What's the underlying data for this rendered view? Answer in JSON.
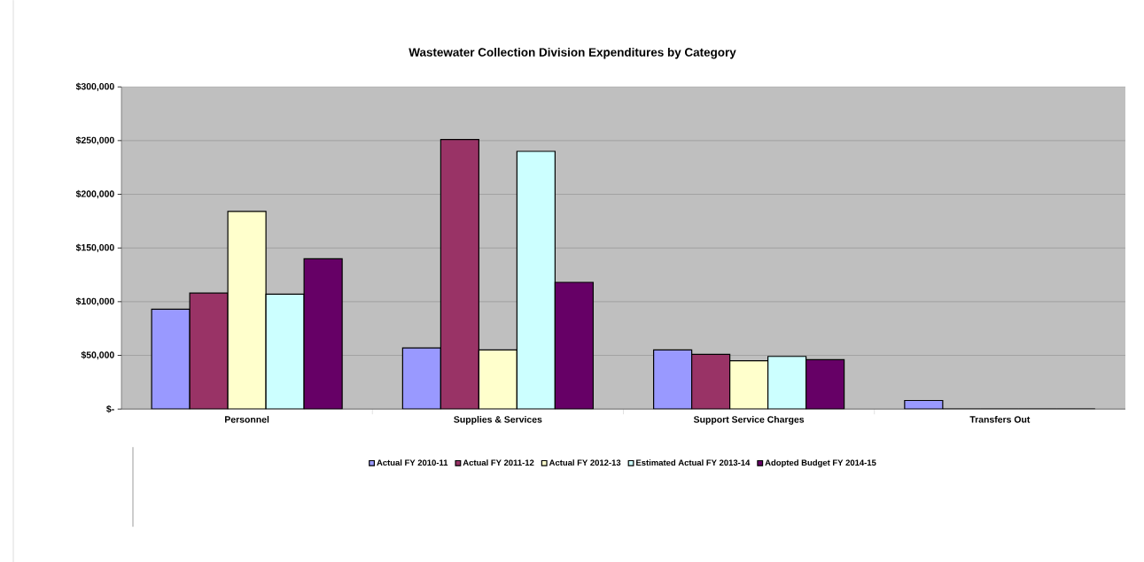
{
  "chart_data": {
    "type": "bar",
    "title": "Wastewater Collection Division Expenditures by Category",
    "categories": [
      "Personnel",
      "Supplies & Services",
      "Support Service Charges",
      "Transfers Out"
    ],
    "series": [
      {
        "name": "Actual FY 2010-11",
        "color": "#9999ff",
        "values": [
          93000,
          57000,
          55000,
          8000
        ]
      },
      {
        "name": "Actual FY 2011-12",
        "color": "#993366",
        "values": [
          108000,
          251000,
          51000,
          0
        ]
      },
      {
        "name": "Actual FY 2012-13",
        "color": "#ffffcc",
        "values": [
          184000,
          55000,
          45000,
          0
        ]
      },
      {
        "name": "Estimated Actual FY 2013-14",
        "color": "#ccffff",
        "values": [
          107000,
          240000,
          49000,
          0
        ]
      },
      {
        "name": "Adopted Budget FY 2014-15",
        "color": "#660066",
        "values": [
          140000,
          118000,
          46000,
          0
        ]
      }
    ],
    "ylim": [
      0,
      300000
    ],
    "yticks": [
      {
        "value": 0,
        "label": "$-"
      },
      {
        "value": 50000,
        "label": "$50,000"
      },
      {
        "value": 100000,
        "label": "$100,000"
      },
      {
        "value": 150000,
        "label": "$150,000"
      },
      {
        "value": 200000,
        "label": "$200,000"
      },
      {
        "value": 250000,
        "label": "$250,000"
      },
      {
        "value": 300000,
        "label": "$300,000"
      }
    ],
    "grid": "y",
    "legend": "bottom"
  }
}
